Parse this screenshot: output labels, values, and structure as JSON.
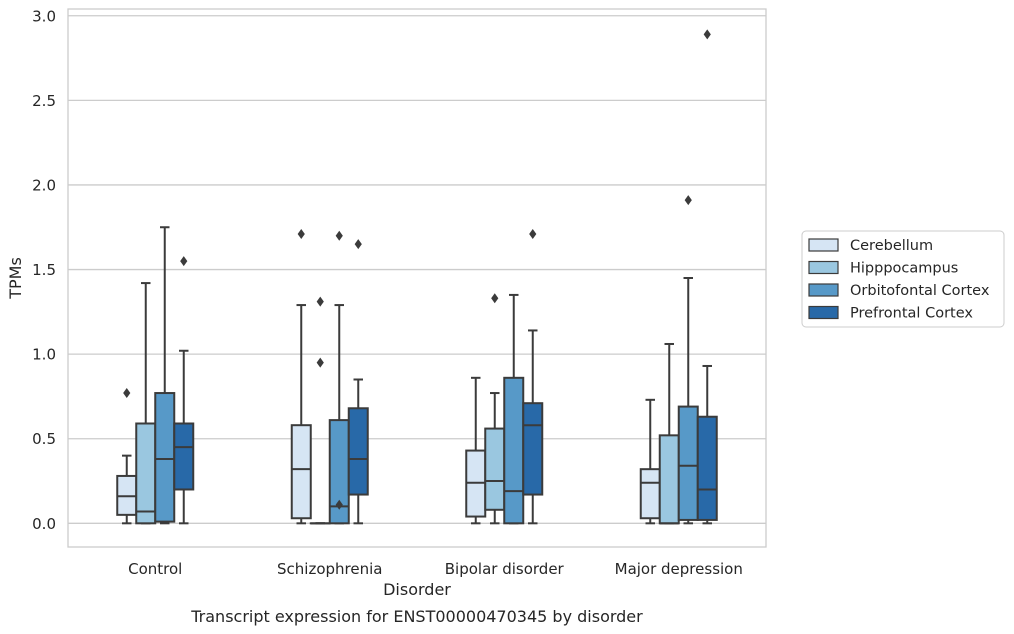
{
  "chart_data": {
    "type": "box",
    "caption": "Transcript expression for ENST00000470345 by disorder",
    "xlabel": "Disorder",
    "ylabel": "TPMs",
    "ylim": [
      -0.14,
      3.04
    ],
    "yticks": [
      0.0,
      0.5,
      1.0,
      1.5,
      2.0,
      2.5,
      3.0
    ],
    "ytick_labels": [
      "0.0",
      "0.5",
      "1.0",
      "1.5",
      "2.0",
      "2.5",
      "3.0"
    ],
    "grid": "horizontal",
    "legend_position": "right",
    "categories": [
      "Control",
      "Schizophrenia",
      "Bipolar disorder",
      "Major depression"
    ],
    "series": [
      {
        "name": "Cerebellum",
        "color": "#d6e5f4",
        "boxes": [
          {
            "whislo": 0.0,
            "q1": 0.05,
            "med": 0.16,
            "q3": 0.28,
            "whishi": 0.4,
            "fliers": [
              0.77
            ]
          },
          {
            "whislo": 0.0,
            "q1": 0.03,
            "med": 0.32,
            "q3": 0.58,
            "whishi": 1.29,
            "fliers": [
              1.71
            ]
          },
          {
            "whislo": 0.0,
            "q1": 0.04,
            "med": 0.24,
            "q3": 0.43,
            "whishi": 0.86,
            "fliers": []
          },
          {
            "whislo": 0.0,
            "q1": 0.03,
            "med": 0.24,
            "q3": 0.32,
            "whishi": 0.73,
            "fliers": []
          }
        ]
      },
      {
        "name": "Hipppocampus",
        "color": "#9ac7e0",
        "boxes": [
          {
            "whislo": 0.0,
            "q1": 0.0,
            "med": 0.07,
            "q3": 0.59,
            "whishi": 1.42,
            "fliers": []
          },
          {
            "whislo": 0.0,
            "q1": 0.0,
            "med": 0.0,
            "q3": 0.0,
            "whishi": 0.0,
            "fliers": [
              0.95,
              1.31
            ]
          },
          {
            "whislo": 0.0,
            "q1": 0.08,
            "med": 0.25,
            "q3": 0.56,
            "whishi": 0.77,
            "fliers": [
              1.33
            ]
          },
          {
            "whislo": 0.0,
            "q1": 0.0,
            "med": 0.0,
            "q3": 0.52,
            "whishi": 1.06,
            "fliers": []
          }
        ]
      },
      {
        "name": "Orbitofontal Cortex",
        "color": "#5799c8",
        "boxes": [
          {
            "whislo": 0.0,
            "q1": 0.01,
            "med": 0.38,
            "q3": 0.77,
            "whishi": 1.75,
            "fliers": []
          },
          {
            "whislo": 0.0,
            "q1": 0.0,
            "med": 0.1,
            "q3": 0.61,
            "whishi": 1.29,
            "fliers": [
              0.11,
              1.7
            ]
          },
          {
            "whislo": 0.0,
            "q1": 0.0,
            "med": 0.19,
            "q3": 0.86,
            "whishi": 1.35,
            "fliers": []
          },
          {
            "whislo": 0.0,
            "q1": 0.02,
            "med": 0.34,
            "q3": 0.69,
            "whishi": 1.45,
            "fliers": [
              1.91
            ]
          }
        ]
      },
      {
        "name": "Prefrontal Cortex",
        "color": "#2869a8",
        "boxes": [
          {
            "whislo": 0.0,
            "q1": 0.2,
            "med": 0.45,
            "q3": 0.59,
            "whishi": 1.02,
            "fliers": [
              1.55
            ]
          },
          {
            "whislo": 0.0,
            "q1": 0.17,
            "med": 0.38,
            "q3": 0.68,
            "whishi": 0.85,
            "fliers": [
              1.65
            ]
          },
          {
            "whislo": 0.0,
            "q1": 0.17,
            "med": 0.58,
            "q3": 0.71,
            "whishi": 1.14,
            "fliers": [
              1.71
            ]
          },
          {
            "whislo": 0.0,
            "q1": 0.02,
            "med": 0.2,
            "q3": 0.63,
            "whishi": 0.93,
            "fliers": [
              2.89
            ]
          }
        ]
      }
    ]
  }
}
